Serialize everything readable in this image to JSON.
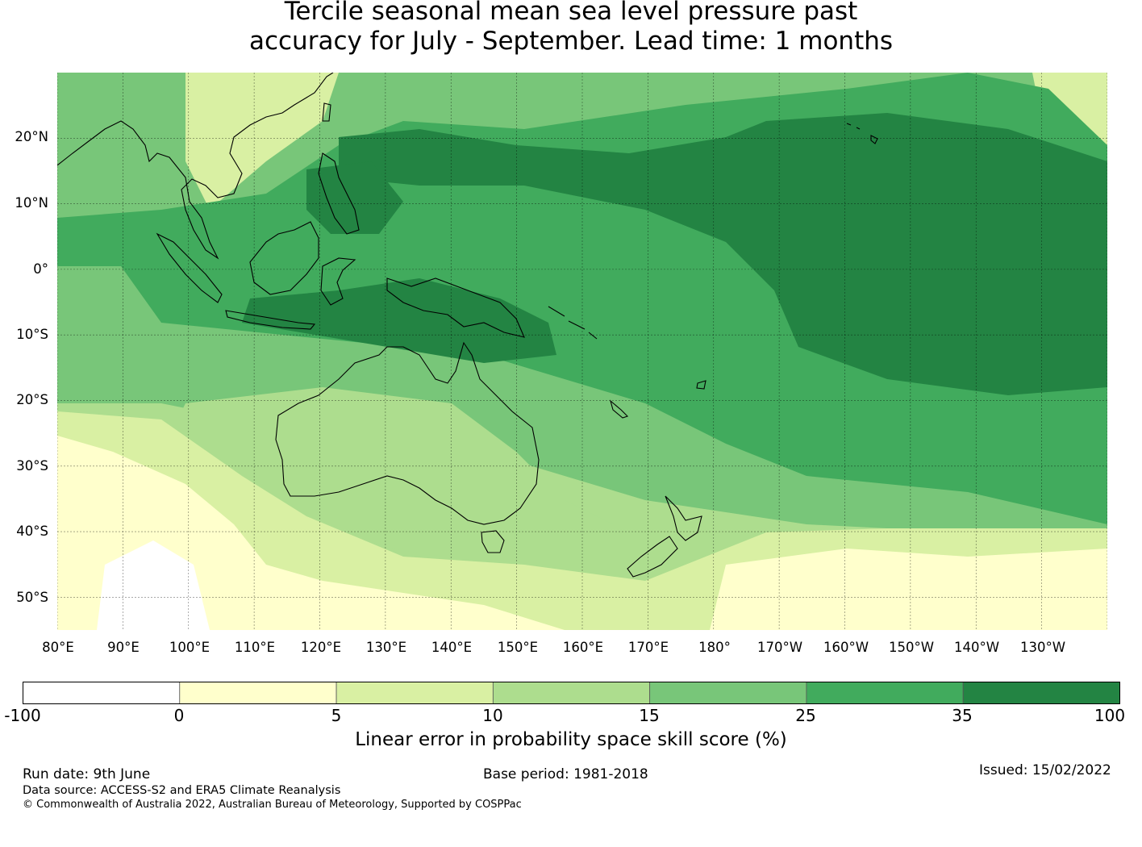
{
  "title": {
    "line1": "Tercile seasonal mean sea level pressure past",
    "line2": "accuracy for July - September. Lead time: 1 months"
  },
  "map": {
    "lat_labels": [
      "20°N",
      "10°N",
      "0°",
      "10°S",
      "20°S",
      "30°S",
      "40°S",
      "50°S"
    ],
    "lon_labels": [
      "80°E",
      "90°E",
      "100°E",
      "110°E",
      "120°E",
      "130°E",
      "140°E",
      "150°E",
      "160°E",
      "170°E",
      "180°",
      "170°W",
      "160°W",
      "150°W",
      "140°W",
      "130°W"
    ],
    "extent": {
      "lon_min": 80,
      "lon_max": 240,
      "lat_min": -55,
      "lat_max": 30
    },
    "grid": true
  },
  "colorbar": {
    "ticks": [
      "-100",
      "0",
      "5",
      "10",
      "15",
      "25",
      "35",
      "100"
    ],
    "colors": [
      "#ffffff",
      "#ffffcc",
      "#d9f0a3",
      "#addd8e",
      "#78c679",
      "#41ab5d",
      "#238443"
    ],
    "label": "Linear error in probability space skill score (%)"
  },
  "footer": {
    "run_date": "Run date: 9th June",
    "base_period": "Base period: 1981-2018",
    "issued": "Issued: 15/02/2022",
    "data_source": "Data source: ACCESS-S2 and ERA5 Climate Reanalysis",
    "copyright": "© Commonwealth of Australia 2022, Australian Bureau of Meteorology, Supported by COSPPac"
  }
}
